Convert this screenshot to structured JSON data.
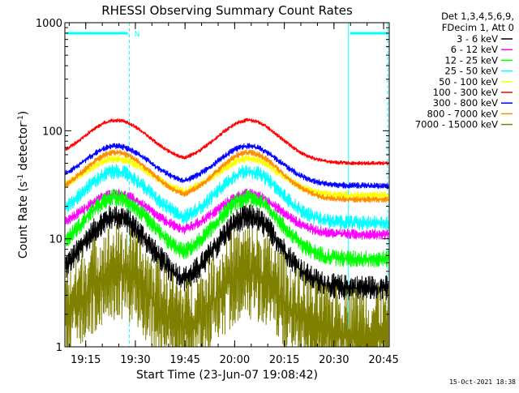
{
  "chart_data": {
    "type": "line",
    "title": "RHESSI Observing Summary Count Rates",
    "xlabel": "Start Time (23-Jun-07 19:08:42)",
    "ylabel": "Count Rate (s",
    "ylabel_sup1": "-1",
    "ylabel_mid": " detector",
    "ylabel_sup2": "-1",
    "ylabel_end": ")",
    "y_scale": "log",
    "ylim": [
      1,
      1000
    ],
    "xlim_minutes": [
      0,
      98
    ],
    "x_tick_labels": [
      {
        "label": "19:15",
        "minute": 6.3
      },
      {
        "label": "19:30",
        "minute": 21.3
      },
      {
        "label": "19:45",
        "minute": 36.3
      },
      {
        "label": "20:00",
        "minute": 51.3
      },
      {
        "label": "20:15",
        "minute": 66.3
      },
      {
        "label": "20:30",
        "minute": 81.3
      },
      {
        "label": "20:45",
        "minute": 96.3
      }
    ],
    "y_tick_labels": [
      {
        "label": "1",
        "value": 1
      },
      {
        "label": "10",
        "value": 10
      },
      {
        "label": "100",
        "value": 100
      },
      {
        "label": "1000",
        "value": 1000
      }
    ],
    "legend_header": [
      "Det 1,3,4,5,6,9,",
      "FDecim 1, Att 0"
    ],
    "legend_placement": "right",
    "night_bar_label": "N",
    "night_intervals_minutes": [
      [
        0,
        19.5
      ],
      [
        85.7,
        98
      ]
    ],
    "series": [
      {
        "name": "3 - 6 keV",
        "color": "#000000",
        "min": 3.5,
        "max": 16,
        "noise": 0.12
      },
      {
        "name": "6 - 12 keV",
        "color": "#ff00ff",
        "min": 11,
        "max": 26,
        "noise": 0.05
      },
      {
        "name": "12 - 25 keV",
        "color": "#00ff00",
        "min": 6.5,
        "max": 24,
        "noise": 0.08
      },
      {
        "name": "25 - 50 keV",
        "color": "#00ffff",
        "min": 14,
        "max": 42,
        "noise": 0.07
      },
      {
        "name": "50 - 100 keV",
        "color": "#ffff00",
        "min": 25,
        "max": 55,
        "noise": 0.04
      },
      {
        "name": "100 - 300 keV",
        "color": "#ff0000",
        "min": 50,
        "max": 125,
        "noise": 0.02
      },
      {
        "name": "300 - 800 keV",
        "color": "#0000ff",
        "min": 31,
        "max": 72,
        "noise": 0.03
      },
      {
        "name": "800 - 7000 keV",
        "color": "#ff8c00",
        "min": 23,
        "max": 63,
        "noise": 0.03
      },
      {
        "name": "7000 - 15000 keV",
        "color": "#808000",
        "min": 1.3,
        "max": 5,
        "noise": 0.45
      }
    ],
    "peaks_minutes": [
      [
        15.5,
        10
      ],
      [
        55.5,
        9.5
      ]
    ],
    "grid": false
  },
  "footer_timestamp": "15-Oct-2021 18:38",
  "colors": {
    "axes": "#000000",
    "night_bar": "#00ffff",
    "background": "#ffffff"
  }
}
